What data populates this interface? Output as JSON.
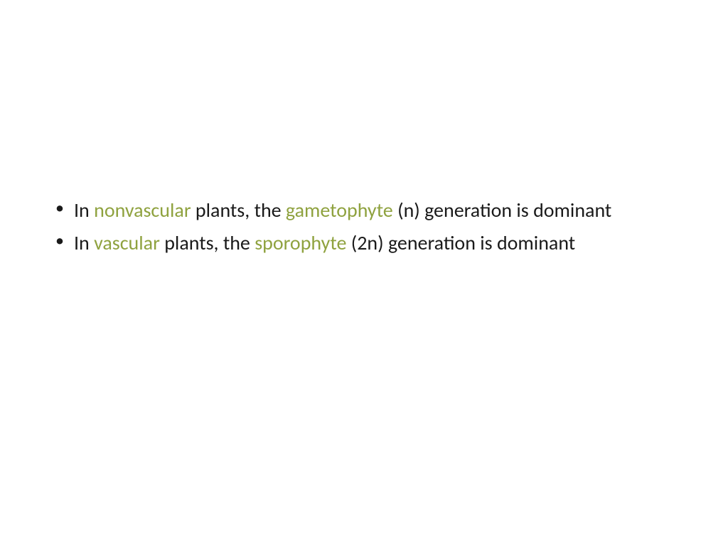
{
  "slide": {
    "bullets": [
      {
        "segments": [
          {
            "text": "In ",
            "highlight": false
          },
          {
            "text": "nonvascular",
            "highlight": true
          },
          {
            "text": " plants, the ",
            "highlight": false
          },
          {
            "text": "gametophyte",
            "highlight": true
          },
          {
            "text": " (n) generation is dominant",
            "highlight": false
          }
        ]
      },
      {
        "segments": [
          {
            "text": "In ",
            "highlight": false
          },
          {
            "text": "vascular",
            "highlight": true
          },
          {
            "text": " plants, the ",
            "highlight": false
          },
          {
            "text": "sporophyte",
            "highlight": true
          },
          {
            "text": " (2n) generation is dominant",
            "highlight": false
          }
        ]
      }
    ],
    "colors": {
      "text": "#1a1a1a",
      "highlight": "#8fa23f",
      "background": "#ffffff"
    },
    "typography": {
      "font_family": "Calibri",
      "font_size_pt": 21,
      "line_height": 1.28
    }
  }
}
